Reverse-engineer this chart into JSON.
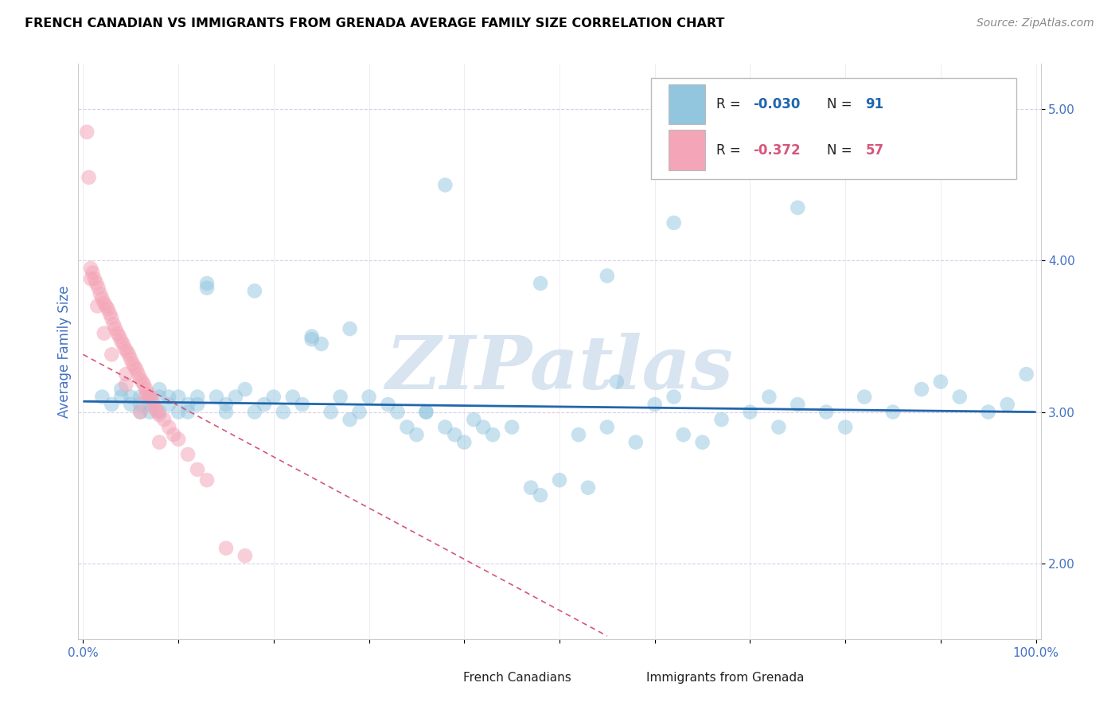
{
  "title": "FRENCH CANADIAN VS IMMIGRANTS FROM GRENADA AVERAGE FAMILY SIZE CORRELATION CHART",
  "source": "Source: ZipAtlas.com",
  "ylabel": "Average Family Size",
  "yticks": [
    2.0,
    3.0,
    4.0,
    5.0
  ],
  "ylim": [
    1.5,
    5.3
  ],
  "xlim": [
    -0.005,
    1.005
  ],
  "blue_scatter_x": [
    0.02,
    0.03,
    0.04,
    0.04,
    0.05,
    0.05,
    0.06,
    0.06,
    0.06,
    0.07,
    0.07,
    0.07,
    0.08,
    0.08,
    0.08,
    0.09,
    0.09,
    0.1,
    0.1,
    0.11,
    0.11,
    0.12,
    0.12,
    0.13,
    0.14,
    0.15,
    0.15,
    0.16,
    0.17,
    0.18,
    0.19,
    0.2,
    0.21,
    0.22,
    0.23,
    0.24,
    0.25,
    0.26,
    0.27,
    0.28,
    0.29,
    0.3,
    0.32,
    0.33,
    0.34,
    0.35,
    0.36,
    0.38,
    0.39,
    0.4,
    0.41,
    0.42,
    0.43,
    0.45,
    0.47,
    0.48,
    0.5,
    0.52,
    0.53,
    0.55,
    0.56,
    0.58,
    0.6,
    0.62,
    0.63,
    0.65,
    0.67,
    0.7,
    0.72,
    0.73,
    0.75,
    0.78,
    0.8,
    0.82,
    0.85,
    0.88,
    0.9,
    0.92,
    0.95,
    0.97,
    0.99,
    0.38,
    0.55,
    0.62,
    0.75,
    0.18,
    0.28,
    0.48,
    0.13,
    0.24,
    0.36
  ],
  "blue_scatter_y": [
    3.1,
    3.05,
    3.1,
    3.15,
    3.1,
    3.05,
    3.05,
    3.1,
    3.0,
    3.1,
    3.05,
    3.0,
    3.1,
    3.15,
    3.0,
    3.05,
    3.1,
    3.0,
    3.1,
    3.05,
    3.0,
    3.1,
    3.05,
    3.85,
    3.1,
    3.05,
    3.0,
    3.1,
    3.15,
    3.0,
    3.05,
    3.1,
    3.0,
    3.1,
    3.05,
    3.5,
    3.45,
    3.0,
    3.1,
    2.95,
    3.0,
    3.1,
    3.05,
    3.0,
    2.9,
    2.85,
    3.0,
    2.9,
    2.85,
    2.8,
    2.95,
    2.9,
    2.85,
    2.9,
    2.5,
    2.45,
    2.55,
    2.85,
    2.5,
    2.9,
    3.2,
    2.8,
    3.05,
    3.1,
    2.85,
    2.8,
    2.95,
    3.0,
    3.1,
    2.9,
    3.05,
    3.0,
    2.9,
    3.1,
    3.0,
    3.15,
    3.2,
    3.1,
    3.0,
    3.05,
    3.25,
    4.5,
    3.9,
    4.25,
    4.35,
    3.8,
    3.55,
    3.85,
    3.82,
    3.48,
    3.0
  ],
  "pink_scatter_x": [
    0.004,
    0.006,
    0.008,
    0.01,
    0.012,
    0.014,
    0.016,
    0.018,
    0.02,
    0.022,
    0.024,
    0.026,
    0.028,
    0.03,
    0.032,
    0.034,
    0.036,
    0.038,
    0.04,
    0.042,
    0.044,
    0.046,
    0.048,
    0.05,
    0.052,
    0.054,
    0.056,
    0.058,
    0.06,
    0.062,
    0.064,
    0.066,
    0.068,
    0.07,
    0.072,
    0.074,
    0.076,
    0.078,
    0.08,
    0.085,
    0.09,
    0.095,
    0.1,
    0.11,
    0.12,
    0.13,
    0.15,
    0.17,
    0.008,
    0.015,
    0.022,
    0.03,
    0.045,
    0.06,
    0.08,
    0.045,
    0.065
  ],
  "pink_scatter_y": [
    4.85,
    4.55,
    3.95,
    3.92,
    3.88,
    3.85,
    3.82,
    3.78,
    3.75,
    3.72,
    3.7,
    3.68,
    3.65,
    3.62,
    3.58,
    3.55,
    3.52,
    3.5,
    3.47,
    3.45,
    3.42,
    3.4,
    3.38,
    3.35,
    3.32,
    3.3,
    3.28,
    3.25,
    3.22,
    3.2,
    3.18,
    3.15,
    3.12,
    3.1,
    3.08,
    3.05,
    3.02,
    3.0,
    2.98,
    2.95,
    2.9,
    2.85,
    2.82,
    2.72,
    2.62,
    2.55,
    2.1,
    2.05,
    3.88,
    3.7,
    3.52,
    3.38,
    3.18,
    3.0,
    2.8,
    3.25,
    3.1
  ],
  "blue_line_x": [
    0.0,
    1.0
  ],
  "blue_line_y": [
    3.07,
    3.0
  ],
  "pink_line_x": [
    0.0,
    0.55
  ],
  "pink_line_y": [
    3.38,
    1.52
  ],
  "blue_color": "#92c5de",
  "pink_color": "#f4a6b8",
  "blue_line_color": "#2166ac",
  "pink_line_color": "#d6567a",
  "background_color": "#ffffff",
  "grid_color": "#d8d0ea",
  "title_color": "#000000",
  "source_color": "#888888",
  "axis_label_color": "#4472c4",
  "tick_color": "#4472c4",
  "watermark": "ZIPatlas",
  "watermark_color": "#d8e4f0",
  "legend_r1": "R = -0.030",
  "legend_n1": "N = 91",
  "legend_r2": "R = -0.372",
  "legend_n2": "N = 57",
  "legend_label1": "French Canadians",
  "legend_label2": "Immigrants from Grenada"
}
